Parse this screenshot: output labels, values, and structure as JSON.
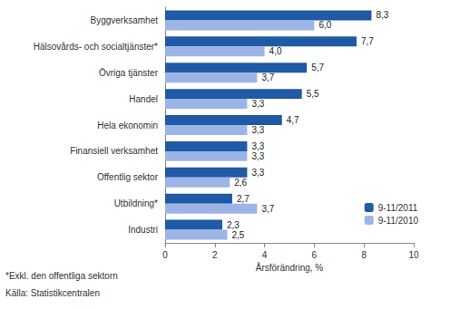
{
  "chart_data": {
    "type": "bar",
    "orientation": "horizontal",
    "categories": [
      "Byggverksamhet",
      "Hälsovårds- och socialtjänster*",
      "Övriga tjänster",
      "Handel",
      "Hela ekonomin",
      "Finansiell verksamhet",
      "Offentlig sektor",
      "Utbildning*",
      "Industri"
    ],
    "series": [
      {
        "name": "9-11/2011",
        "color": "#1f5aa6",
        "values": [
          8.3,
          7.7,
          5.7,
          5.5,
          4.7,
          3.3,
          3.3,
          2.7,
          2.3
        ],
        "value_labels": [
          "8,3",
          "7,7",
          "5,7",
          "5,5",
          "4,7",
          "3,3",
          "3,3",
          "2,7",
          "2,3"
        ]
      },
      {
        "name": "9-11/2010",
        "color": "#9db4e6",
        "values": [
          6.0,
          4.0,
          3.7,
          3.3,
          3.3,
          3.3,
          2.6,
          3.7,
          2.5
        ],
        "value_labels": [
          "6,0",
          "4,0",
          "3,7",
          "3,3",
          "3,3",
          "3,3",
          "2,6",
          "3,7",
          "2,5"
        ]
      }
    ],
    "x_label": "Årsförändring, %",
    "xlim": [
      0,
      10
    ],
    "xticks": [
      0,
      2,
      4,
      6,
      8,
      10
    ],
    "grid": false,
    "legend": "lower right",
    "data_labels": true,
    "annotations": [
      "*Exkl. den offentliga sektorn",
      "Källa: Statistikcentralen"
    ]
  }
}
